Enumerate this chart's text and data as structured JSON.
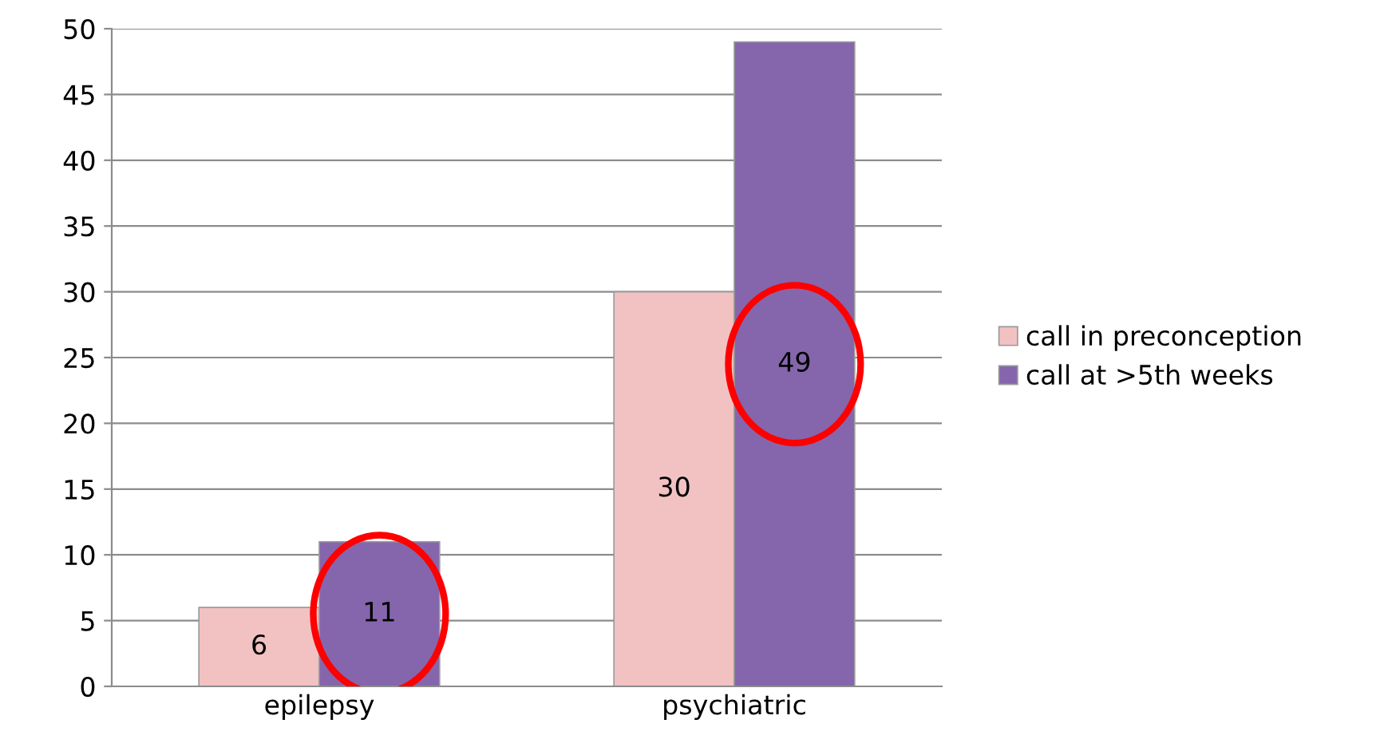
{
  "chart_data": {
    "type": "bar",
    "categories": [
      "epilepsy",
      "psychiatric"
    ],
    "series": [
      {
        "name": "call in preconception",
        "color": "#f2c2c2",
        "values": [
          6,
          30
        ]
      },
      {
        "name": "call at >5th weeks",
        "color": "#8566ac",
        "values": [
          11,
          49
        ]
      }
    ],
    "ylim": [
      0,
      50
    ],
    "yticks": [
      0,
      5,
      10,
      15,
      20,
      25,
      30,
      35,
      40,
      45,
      50
    ],
    "grid": "y",
    "legend": "right",
    "data_labels": true
  }
}
